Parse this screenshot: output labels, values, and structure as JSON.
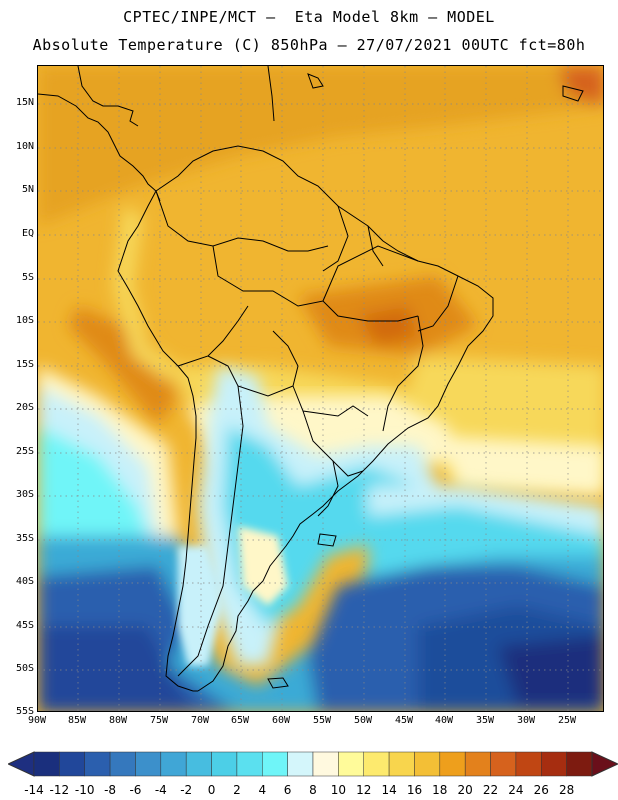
{
  "header": {
    "title_line1": "CPTEC/INPE/MCT –  Eta Model 8km – MODEL",
    "title_line2": "Absolute Temperature (C) 850hPa – 27/07/2021 00UTC fct=80h"
  },
  "map": {
    "lat_labels": [
      "15N",
      "10N",
      "5N",
      "EQ",
      "5S",
      "10S",
      "15S",
      "20S",
      "25S",
      "30S",
      "35S",
      "40S",
      "45S",
      "50S",
      "55S"
    ],
    "lon_labels": [
      "90W",
      "85W",
      "80W",
      "75W",
      "70W",
      "65W",
      "60W",
      "55W",
      "50W",
      "45W",
      "40W",
      "35W",
      "30W",
      "25W"
    ],
    "lat_range": [
      -55,
      19
    ],
    "lon_range": [
      -90,
      -20.5
    ],
    "colors": {
      "warm_ocean": "#f0b530",
      "hot": "#e08a18",
      "very_hot": "#d26a10",
      "mild": "#f7d85a",
      "cool": "#fff7c8",
      "cold_light": "#c8f1fa",
      "cold": "#55d9ee",
      "colder": "#3aaad6",
      "coldest": "#1f4d9b"
    }
  },
  "colorbar": {
    "labels": [
      "-14",
      "-12",
      "-10",
      "-8",
      "-6",
      "-4",
      "-2",
      "0",
      "2",
      "4",
      "6",
      "8",
      "10",
      "12",
      "14",
      "16",
      "18",
      "20",
      "22",
      "24",
      "26",
      "28"
    ],
    "colors": [
      "#1a2f7d",
      "#21479a",
      "#2b5fae",
      "#3578bd",
      "#3c90cb",
      "#40a6d6",
      "#47bde0",
      "#4ccfe7",
      "#5be0ef",
      "#6ff5f8",
      "#d4f6fb",
      "#fff9df",
      "#fffb9a",
      "#fdea6e",
      "#f8d54d",
      "#f3bf36",
      "#ee9f1c",
      "#e3811c",
      "#d6621d",
      "#c04613",
      "#a62d10",
      "#7d1b10"
    ],
    "low_arrow": "#1e2f80",
    "high_arrow": "#6a0f1a"
  }
}
